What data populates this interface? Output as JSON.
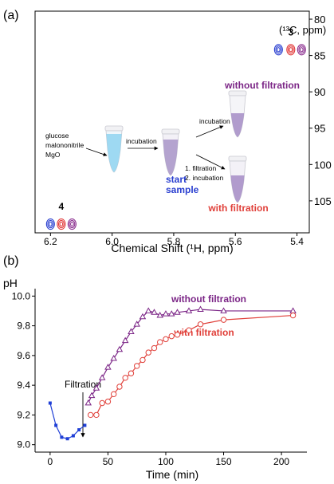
{
  "chart_data": [
    {
      "type": "contour",
      "panel_label": "(a)",
      "x_label": "Chemical Shift (¹H, ppm)",
      "y_label": "(¹³C, ppm)",
      "xlim": [
        6.25,
        5.36
      ],
      "xticks": [
        6.2,
        {
          "value": 6,
          "label": "6.0"
        },
        5.8,
        5.6,
        5.4
      ],
      "ylim": [
        109.4,
        78.9
      ],
      "yticks": [
        80,
        85,
        90,
        95,
        100,
        105
      ],
      "groups": [
        {
          "label": "3",
          "x": [
            5.46,
            5.42,
            5.385
          ],
          "y": [
            84.2,
            84.2,
            84.2
          ],
          "colors": [
            "#2a3fd0",
            "#e23a3a",
            "#8b2f8f"
          ]
        },
        {
          "label": "4",
          "x": [
            6.2,
            6.165,
            6.13
          ],
          "y": [
            108.2,
            108.2,
            108.2
          ],
          "colors": [
            "#2a3fd0",
            "#e23a3a",
            "#8b2f8f"
          ]
        }
      ],
      "annotations": [
        "without filtration",
        "with filtration",
        "start",
        "sample",
        "glucose",
        "malononitrile",
        "MgO",
        "incubation",
        "incubation",
        "1. filtration",
        "2. incubation"
      ]
    },
    {
      "type": "line",
      "panel_label": "(b)",
      "y_label": "pH",
      "x_label": "Time (min)",
      "annotation": "Filtration",
      "xlim": [
        -13,
        222
      ],
      "xticks": [
        0,
        50,
        100,
        150,
        200
      ],
      "ylim": [
        8.95,
        10.05
      ],
      "yticks": [
        {
          "value": 9,
          "label": "9.0"
        },
        9.2,
        9.4,
        9.6,
        9.8,
        {
          "value": 10,
          "label": "10.0"
        }
      ],
      "series": [
        {
          "color": "#1f3fd6",
          "marker": "square",
          "x": [
            0,
            5,
            10,
            15,
            20,
            25,
            30
          ],
          "values": [
            9.28,
            9.13,
            9.05,
            9.04,
            9.06,
            9.1,
            9.13
          ]
        },
        {
          "name": "without filtration",
          "color": "#7b2586",
          "marker": "triangle",
          "x": [
            33,
            36,
            40,
            45,
            50,
            55,
            60,
            65,
            70,
            75,
            80,
            85,
            90,
            95,
            100,
            105,
            110,
            120,
            130,
            150,
            210
          ],
          "values": [
            9.28,
            9.33,
            9.38,
            9.45,
            9.52,
            9.58,
            9.64,
            9.7,
            9.76,
            9.81,
            9.86,
            9.9,
            9.89,
            9.87,
            9.88,
            9.88,
            9.89,
            9.9,
            9.91,
            9.9,
            9.9
          ]
        },
        {
          "name": "with filtration",
          "color": "#e0403a",
          "marker": "circle",
          "x": [
            35,
            40,
            45,
            50,
            55,
            60,
            65,
            70,
            75,
            80,
            85,
            90,
            95,
            100,
            105,
            110,
            120,
            130,
            150,
            210
          ],
          "values": [
            9.2,
            9.2,
            9.28,
            9.29,
            9.34,
            9.39,
            9.45,
            9.48,
            9.53,
            9.57,
            9.62,
            9.65,
            9.69,
            9.71,
            9.73,
            9.74,
            9.77,
            9.81,
            9.84,
            9.87
          ]
        }
      ]
    }
  ]
}
